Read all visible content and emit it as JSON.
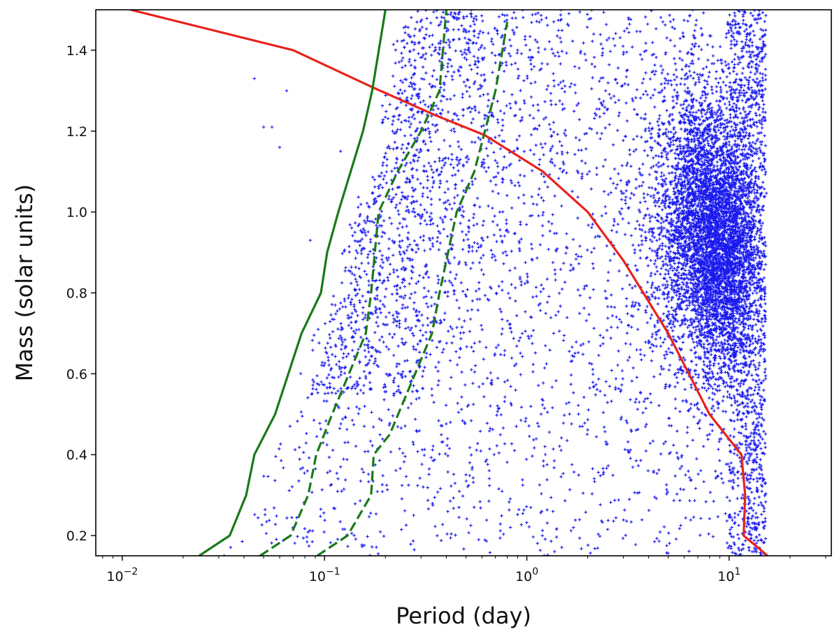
{
  "chart_data": {
    "type": "scatter",
    "title": "",
    "xlabel": "Period (day)",
    "ylabel": "Mass (solar units)",
    "xscale": "log",
    "xlim": [
      0.0074,
      32
    ],
    "ylim": [
      0.15,
      1.5
    ],
    "grid": false,
    "x_ticks": [
      {
        "value": 0.01,
        "base": "10",
        "exp": "−2"
      },
      {
        "value": 0.1,
        "base": "10",
        "exp": "−1"
      },
      {
        "value": 1,
        "base": "10",
        "exp": "0"
      },
      {
        "value": 10,
        "base": "10",
        "exp": "1"
      }
    ],
    "y_ticks": [
      {
        "value": 0.2,
        "label": "0.2"
      },
      {
        "value": 0.4,
        "label": "0.4"
      },
      {
        "value": 0.6,
        "label": "0.6"
      },
      {
        "value": 0.8,
        "label": "0.8"
      },
      {
        "value": 1.0,
        "label": "1.0"
      },
      {
        "value": 1.2,
        "label": "1.2"
      },
      {
        "value": 1.4,
        "label": "1.4"
      }
    ],
    "colors": {
      "scatter": "#1a1aee",
      "red_line": "#e8221b",
      "green_line": "#1a7a1a"
    },
    "scatter": {
      "marker": "+",
      "approx_count": 9000,
      "x_range": [
        0.03,
        15
      ],
      "y_range": [
        0.15,
        1.5
      ],
      "dense_region": {
        "x": [
          3,
          15
        ],
        "y": [
          0.7,
          1.25
        ]
      }
    },
    "lines": [
      {
        "color": "red",
        "style": "solid",
        "x": [
          0.011,
          0.07,
          0.17,
          0.35,
          0.62,
          1.2,
          2.0,
          3.0,
          5.0,
          8.0,
          11.5,
          12.0,
          11.8,
          15.5
        ],
        "y": [
          1.5,
          1.4,
          1.31,
          1.24,
          1.19,
          1.1,
          1.0,
          0.88,
          0.7,
          0.5,
          0.4,
          0.3,
          0.2,
          0.15
        ]
      },
      {
        "color": "green",
        "style": "solid",
        "x": [
          0.024,
          0.034,
          0.041,
          0.045,
          0.057,
          0.077,
          0.096,
          0.103,
          0.117,
          0.155,
          0.172,
          0.2
        ],
        "y": [
          0.15,
          0.2,
          0.3,
          0.4,
          0.5,
          0.7,
          0.8,
          0.9,
          1.0,
          1.2,
          1.3,
          1.5
        ]
      },
      {
        "color": "green",
        "style": "dashed",
        "x": [
          0.048,
          0.068,
          0.083,
          0.091,
          0.109,
          0.16,
          0.17,
          0.185,
          0.23,
          0.3,
          0.37,
          0.4
        ],
        "y": [
          0.15,
          0.2,
          0.3,
          0.4,
          0.5,
          0.7,
          0.8,
          1.0,
          1.1,
          1.2,
          1.3,
          1.5
        ]
      },
      {
        "color": "green",
        "style": "dashed",
        "x": [
          0.092,
          0.13,
          0.17,
          0.175,
          0.21,
          0.34,
          0.37,
          0.45,
          0.55,
          0.7,
          0.8
        ],
        "y": [
          0.15,
          0.2,
          0.3,
          0.4,
          0.45,
          0.7,
          0.8,
          1.0,
          1.1,
          1.3,
          1.47
        ]
      }
    ]
  }
}
